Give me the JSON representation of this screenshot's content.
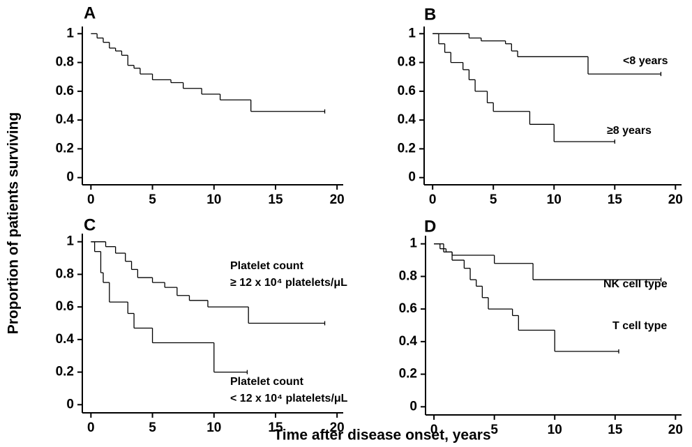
{
  "y_label": "Proportion of patients surviving",
  "x_label": "Time after disease onset, years",
  "chart_data": [
    {
      "type": "step",
      "title": "A",
      "xlim": [
        -0.7,
        20.5
      ],
      "ylim": [
        -0.05,
        1.05
      ],
      "xticks": [
        0,
        5,
        10,
        15,
        20
      ],
      "yticks": [
        0,
        0.2,
        0.4,
        0.6,
        0.8,
        1
      ],
      "series": [
        {
          "name": null,
          "color": "#000000",
          "x": [
            0,
            0.5,
            1,
            1.5,
            2,
            2.5,
            3,
            3.5,
            4,
            5,
            6.5,
            7.5,
            9,
            10.5,
            13,
            19
          ],
          "values": [
            1,
            0.97,
            0.94,
            0.9,
            0.88,
            0.85,
            0.78,
            0.76,
            0.72,
            0.68,
            0.66,
            0.62,
            0.58,
            0.54,
            0.46,
            0.46
          ]
        }
      ]
    },
    {
      "type": "step",
      "title": "B",
      "xlim": [
        -0.7,
        20.5
      ],
      "ylim": [
        -0.05,
        1.05
      ],
      "xticks": [
        0,
        5,
        10,
        15,
        20
      ],
      "yticks": [
        0,
        0.2,
        0.4,
        0.6,
        0.8,
        1
      ],
      "series": [
        {
          "name": "<8 years",
          "color": "#000000",
          "x": [
            0,
            3,
            4,
            6,
            6.5,
            7,
            12.8,
            18.8
          ],
          "values": [
            1,
            0.97,
            0.95,
            0.93,
            0.88,
            0.84,
            0.72,
            0.72
          ]
        },
        {
          "name": "≥8 years",
          "color": "#000000",
          "x": [
            0,
            0.5,
            1,
            1.5,
            2.5,
            3,
            3.5,
            4.5,
            5,
            8,
            10,
            15
          ],
          "values": [
            1,
            0.93,
            0.87,
            0.8,
            0.75,
            0.68,
            0.6,
            0.52,
            0.46,
            0.37,
            0.25,
            0.25
          ]
        }
      ]
    },
    {
      "type": "step",
      "title": "C",
      "xlim": [
        -0.7,
        20.5
      ],
      "ylim": [
        -0.05,
        1.05
      ],
      "xticks": [
        0,
        5,
        10,
        15,
        20
      ],
      "yticks": [
        0,
        0.2,
        0.4,
        0.6,
        0.8,
        1
      ],
      "series": [
        {
          "name": "Platelet count\n≥ 12 x 10⁴ platelets/μL",
          "color": "#000000",
          "x": [
            0,
            1.2,
            2,
            2.8,
            3.3,
            3.8,
            5,
            6,
            7,
            8,
            9.5,
            12.8,
            19
          ],
          "values": [
            1,
            0.97,
            0.93,
            0.88,
            0.83,
            0.78,
            0.75,
            0.72,
            0.67,
            0.64,
            0.6,
            0.5,
            0.5
          ]
        },
        {
          "name": "Platelet count\n< 12 x 10⁴ platelets/μL",
          "color": "#000000",
          "x": [
            0,
            0.3,
            0.8,
            1,
            1.5,
            3,
            3.5,
            5,
            10,
            12.7
          ],
          "values": [
            1,
            0.94,
            0.81,
            0.75,
            0.63,
            0.56,
            0.47,
            0.38,
            0.2,
            0.2
          ]
        }
      ]
    },
    {
      "type": "step",
      "title": "D",
      "xlim": [
        -0.7,
        20.5
      ],
      "ylim": [
        -0.05,
        1.05
      ],
      "xticks": [
        0,
        5,
        10,
        15,
        20
      ],
      "yticks": [
        0,
        0.2,
        0.4,
        0.6,
        0.8,
        1
      ],
      "series": [
        {
          "name": "NK cell type",
          "color": "#000000",
          "x": [
            0,
            0.5,
            1,
            1.5,
            5,
            8.2,
            18.8
          ],
          "values": [
            1,
            0.97,
            0.95,
            0.93,
            0.88,
            0.78,
            0.78
          ]
        },
        {
          "name": "T cell type",
          "color": "#000000",
          "x": [
            0,
            0.8,
            1.5,
            2.5,
            3,
            3.5,
            4,
            4.5,
            6.5,
            7,
            10,
            15.3
          ],
          "values": [
            1,
            0.95,
            0.9,
            0.85,
            0.78,
            0.74,
            0.67,
            0.6,
            0.56,
            0.47,
            0.34,
            0.34
          ]
        }
      ]
    }
  ]
}
